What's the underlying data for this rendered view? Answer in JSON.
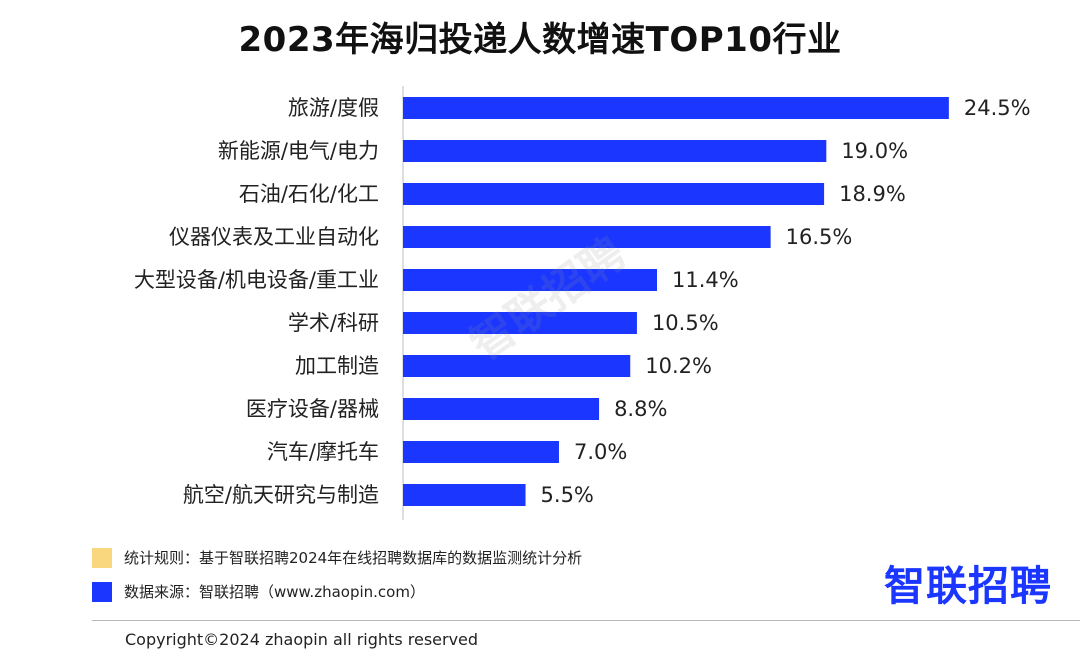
{
  "chart_data": {
    "type": "bar",
    "orientation": "horizontal",
    "title": "2023年海归投递人数增速TOP10行业",
    "categories": [
      "旅游/度假",
      "新能源/电气/电力",
      "石油/石化/化工",
      "仪器仪表及工业自动化",
      "大型设备/机电设备/重工业",
      "学术/科研",
      "加工制造",
      "医疗设备/器械",
      "汽车/摩托车",
      "航空/航天研究与制造"
    ],
    "values": [
      24.5,
      19.0,
      18.9,
      16.5,
      11.4,
      10.5,
      10.2,
      8.8,
      7.0,
      5.5
    ],
    "value_labels": [
      "24.5%",
      "19.0%",
      "18.9%",
      "16.5%",
      "11.4%",
      "10.5%",
      "10.2%",
      "8.8%",
      "7.0%",
      "5.5%"
    ],
    "xlim": [
      0,
      25
    ],
    "bar_color": "#1a36ff",
    "grid": false,
    "xlabel": "",
    "ylabel": ""
  },
  "watermark": "智联招聘",
  "legend": [
    {
      "text": "统计规则：基于智联招聘2024年在线招聘数据库的数据监测统计分析",
      "color": "#f9d77e"
    },
    {
      "text": "数据来源：智联招聘（www.zhaopin.com）",
      "color": "#1a36ff"
    }
  ],
  "logo": {
    "text": "智联招聘",
    "color": "#1a36ff"
  },
  "footer": {
    "copyright": "Copyright©2024 zhaopin all rights reserved"
  }
}
